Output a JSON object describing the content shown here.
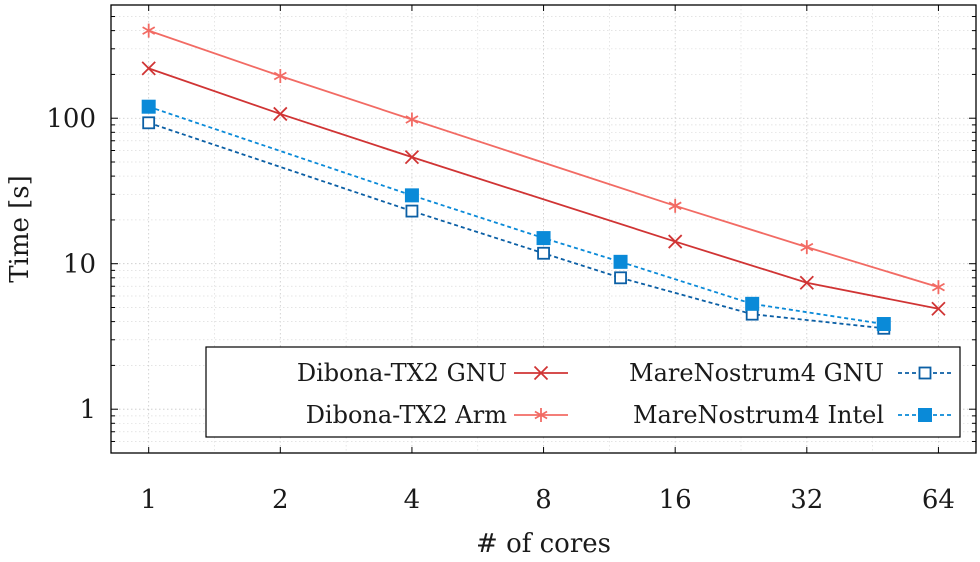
{
  "chart_data": {
    "type": "line",
    "xscale": "log2",
    "yscale": "log10",
    "xlabel": "# of cores",
    "ylabel": "Time [s]",
    "x_ticks": [
      1,
      2,
      4,
      8,
      16,
      32,
      64
    ],
    "x_tick_labels": [
      "1",
      "2",
      "4",
      "8",
      "16",
      "32",
      "64"
    ],
    "y_ticks": [
      1,
      10,
      100
    ],
    "y_tick_labels": [
      "1",
      "10",
      "100"
    ],
    "xlim": [
      0.82,
      78
    ],
    "ylim": [
      0.5,
      600
    ],
    "grid": true,
    "legend_position": "bottom-right",
    "series": [
      {
        "name": "Dibona-TX2 GNU",
        "color": "#d03434",
        "marker": "x",
        "linestyle": "solid",
        "x": [
          1,
          2,
          4,
          16,
          32,
          64
        ],
        "y": [
          220,
          107,
          54,
          14.2,
          7.4,
          4.9
        ]
      },
      {
        "name": "Dibona-TX2 Arm",
        "color": "#f26b64",
        "marker": "asterisk",
        "linestyle": "solid",
        "x": [
          1,
          2,
          4,
          16,
          32,
          64
        ],
        "y": [
          400,
          195,
          98,
          25,
          13,
          6.9
        ]
      },
      {
        "name": "MareNostrum4 GNU",
        "color": "#0b5fa5",
        "marker": "open-square",
        "linestyle": "dashed",
        "x": [
          1,
          4,
          8,
          12,
          24,
          48
        ],
        "y": [
          93,
          23,
          11.8,
          8,
          4.5,
          3.6
        ]
      },
      {
        "name": "MareNostrum4 Intel",
        "color": "#0a8ad8",
        "marker": "filled-square",
        "linestyle": "dashed",
        "x": [
          1,
          4,
          8,
          12,
          24,
          48
        ],
        "y": [
          120,
          29.5,
          15,
          10.3,
          5.3,
          3.85
        ]
      }
    ]
  }
}
